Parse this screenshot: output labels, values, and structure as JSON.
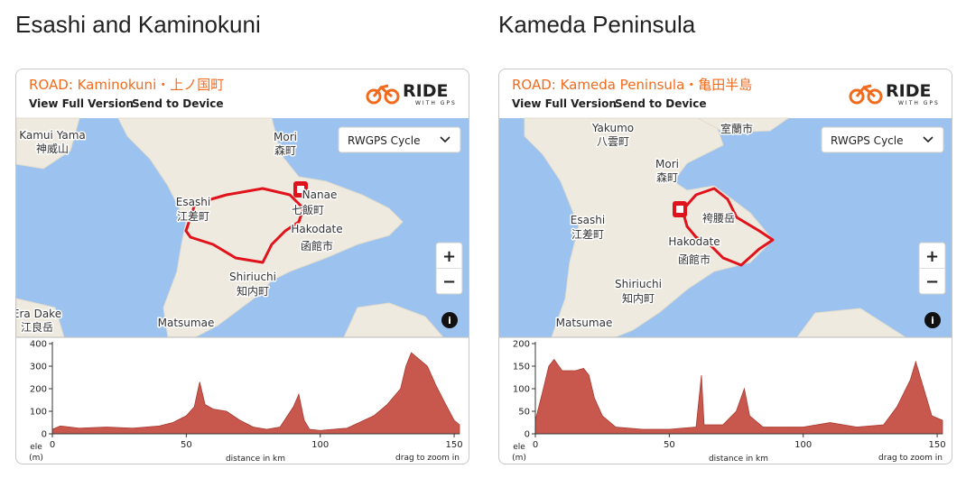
{
  "sections": [
    {
      "heading": "Esashi and Kaminokuni",
      "route_title": "ROAD: Kaminokuni・上ノ国町",
      "links": [
        "View Full Version",
        "Send to Device"
      ],
      "brand": "RIDE",
      "brand_sub": "WITH GPS",
      "map_style": "RWGPS Cycle",
      "zoom": [
        "+",
        "−"
      ],
      "info": "i",
      "map_labels": [
        "Kamui Yama",
        "神威山",
        "Mori",
        "森町",
        "Nanae",
        "七飯町",
        "Esashi",
        "江差町",
        "Hakodate",
        "函館市",
        "Shiriuchi",
        "知内町",
        "Era Dake",
        "江良岳",
        "Matsumae"
      ],
      "elevation": {
        "type": "area",
        "color": "#c8584e",
        "x": [
          0,
          3,
          10,
          20,
          30,
          40,
          45,
          50,
          53,
          55,
          57,
          60,
          65,
          70,
          75,
          80,
          85,
          90,
          92,
          94,
          96,
          100,
          110,
          120,
          125,
          130,
          132,
          134,
          137,
          140,
          143,
          146,
          150,
          152
        ],
        "values": [
          20,
          35,
          25,
          30,
          25,
          35,
          50,
          80,
          120,
          230,
          130,
          110,
          100,
          60,
          30,
          20,
          30,
          120,
          175,
          60,
          20,
          15,
          25,
          80,
          130,
          200,
          300,
          360,
          330,
          300,
          220,
          150,
          60,
          40
        ],
        "xlim": [
          0,
          152
        ],
        "ylim": [
          0,
          400
        ],
        "xticks": [
          0,
          50,
          100,
          150
        ],
        "yticks": [
          0,
          100,
          200,
          300,
          400
        ],
        "y_label": [
          "ele",
          "(m)"
        ],
        "x_label": "distance in km",
        "hint": "drag to zoom in"
      }
    },
    {
      "heading": "Kameda Peninsula",
      "route_title": "ROAD: Kameda Peninsula・亀田半島",
      "links": [
        "View Full Version",
        "Send to Device"
      ],
      "brand": "RIDE",
      "brand_sub": "WITH GPS",
      "map_style": "RWGPS Cycle",
      "zoom": [
        "+",
        "−"
      ],
      "info": "i",
      "map_labels": [
        "室蘭市",
        "Yakumo",
        "八雲町",
        "Mori",
        "森町",
        "Esashi",
        "江差町",
        "袴腰岳",
        "Hakodate",
        "函館市",
        "Shiriuchi",
        "知内町",
        "Matsumae"
      ],
      "elevation": {
        "type": "area",
        "color": "#c8584e",
        "x": [
          0,
          3,
          5,
          7,
          10,
          15,
          18,
          20,
          22,
          25,
          30,
          40,
          50,
          60,
          62,
          63,
          70,
          75,
          78,
          80,
          85,
          100,
          110,
          120,
          130,
          135,
          140,
          142,
          145,
          148,
          152
        ],
        "values": [
          30,
          100,
          150,
          165,
          140,
          140,
          145,
          130,
          80,
          40,
          15,
          10,
          10,
          15,
          130,
          20,
          20,
          50,
          100,
          40,
          15,
          15,
          25,
          15,
          20,
          60,
          120,
          160,
          100,
          40,
          30
        ],
        "xlim": [
          0,
          152
        ],
        "ylim": [
          0,
          200
        ],
        "xticks": [
          0,
          50,
          100,
          150
        ],
        "yticks": [
          0,
          50,
          100,
          150,
          200
        ],
        "y_label": [
          "ele",
          "(m)"
        ],
        "x_label": "distance in km",
        "hint": "drag to zoom in"
      }
    }
  ]
}
